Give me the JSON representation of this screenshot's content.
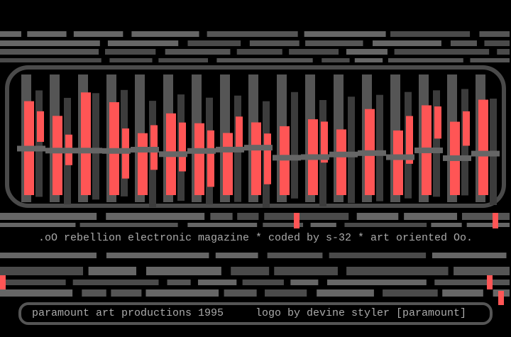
{
  "tagline": ".oO rebellion electronic magazine * coded by s-32 * art oriented Oo.",
  "credits": {
    "group": "paramount art productions 1995",
    "logo": "logo by devine styler [paramount]"
  }
}
